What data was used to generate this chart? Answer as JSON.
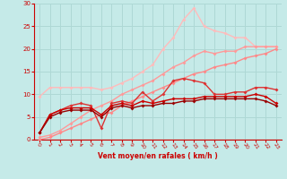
{
  "xlabel": "Vent moyen/en rafales ( km/h )",
  "xlim": [
    -0.5,
    23.5
  ],
  "ylim": [
    0,
    30
  ],
  "yticks": [
    0,
    5,
    10,
    15,
    20,
    25,
    30
  ],
  "xticks": [
    0,
    1,
    2,
    3,
    4,
    5,
    6,
    7,
    8,
    9,
    10,
    11,
    12,
    13,
    14,
    15,
    16,
    17,
    18,
    19,
    20,
    21,
    22,
    23
  ],
  "bg_color": "#c5eae8",
  "grid_color": "#aed8d5",
  "series": [
    {
      "name": "line1_lightest",
      "color": "#ffbbbb",
      "lw": 1.0,
      "x": [
        0,
        1,
        2,
        3,
        4,
        5,
        6,
        7,
        8,
        9,
        10,
        11,
        12,
        13,
        14,
        15,
        16,
        17,
        18,
        19,
        20,
        21,
        22,
        23
      ],
      "y": [
        9.5,
        11.5,
        11.5,
        11.5,
        11.5,
        11.5,
        11.0,
        11.5,
        12.5,
        13.5,
        15.0,
        16.5,
        20.0,
        22.5,
        26.5,
        29.0,
        25.0,
        24.0,
        23.5,
        22.5,
        22.5,
        20.5,
        20.5,
        20.5
      ]
    },
    {
      "name": "line2_light",
      "color": "#ff9999",
      "lw": 1.0,
      "x": [
        0,
        1,
        2,
        3,
        4,
        5,
        6,
        7,
        8,
        9,
        10,
        11,
        12,
        13,
        14,
        15,
        16,
        17,
        18,
        19,
        20,
        21,
        22,
        23
      ],
      "y": [
        0.5,
        1.0,
        2.0,
        3.5,
        5.0,
        6.5,
        7.5,
        8.5,
        10.0,
        11.0,
        12.0,
        13.0,
        14.5,
        16.0,
        17.0,
        18.5,
        19.5,
        19.0,
        19.5,
        19.5,
        20.5,
        20.5,
        20.5,
        20.5
      ]
    },
    {
      "name": "line3_trend1",
      "color": "#ff8888",
      "lw": 1.0,
      "x": [
        0,
        1,
        2,
        3,
        4,
        5,
        6,
        7,
        8,
        9,
        10,
        11,
        12,
        13,
        14,
        15,
        16,
        17,
        18,
        19,
        20,
        21,
        22,
        23
      ],
      "y": [
        0.0,
        0.5,
        1.5,
        2.5,
        3.5,
        4.5,
        5.5,
        6.0,
        7.5,
        8.5,
        9.5,
        10.5,
        11.5,
        12.5,
        13.5,
        14.5,
        15.0,
        16.0,
        16.5,
        17.0,
        18.0,
        18.5,
        19.0,
        20.0
      ]
    },
    {
      "name": "line4_medium",
      "color": "#dd3333",
      "lw": 1.0,
      "x": [
        0,
        1,
        2,
        3,
        4,
        5,
        6,
        7,
        8,
        9,
        10,
        11,
        12,
        13,
        14,
        15,
        16,
        17,
        18,
        19,
        20,
        21,
        22,
        23
      ],
      "y": [
        1.5,
        5.5,
        6.5,
        7.5,
        8.0,
        7.5,
        2.5,
        8.0,
        8.5,
        8.0,
        10.5,
        8.5,
        10.0,
        13.0,
        13.5,
        13.0,
        12.5,
        10.0,
        10.0,
        10.5,
        10.5,
        11.5,
        11.5,
        11.0
      ]
    },
    {
      "name": "line5_dark",
      "color": "#cc0000",
      "lw": 1.0,
      "x": [
        0,
        1,
        2,
        3,
        4,
        5,
        6,
        7,
        8,
        9,
        10,
        11,
        12,
        13,
        14,
        15,
        16,
        17,
        18,
        19,
        20,
        21,
        22,
        23
      ],
      "y": [
        1.5,
        5.5,
        6.5,
        7.0,
        7.0,
        7.0,
        5.5,
        7.5,
        8.0,
        7.5,
        8.5,
        8.0,
        8.5,
        9.0,
        9.0,
        9.0,
        9.5,
        9.5,
        9.5,
        9.5,
        9.5,
        10.0,
        9.5,
        8.0
      ]
    },
    {
      "name": "line6_darkest",
      "color": "#990000",
      "lw": 1.0,
      "x": [
        0,
        1,
        2,
        3,
        4,
        5,
        6,
        7,
        8,
        9,
        10,
        11,
        12,
        13,
        14,
        15,
        16,
        17,
        18,
        19,
        20,
        21,
        22,
        23
      ],
      "y": [
        1.5,
        5.0,
        6.0,
        6.5,
        6.5,
        6.5,
        5.0,
        7.0,
        7.5,
        7.0,
        7.5,
        7.5,
        8.0,
        8.0,
        8.5,
        8.5,
        9.0,
        9.0,
        9.0,
        9.0,
        9.0,
        9.0,
        8.5,
        7.5
      ]
    }
  ]
}
